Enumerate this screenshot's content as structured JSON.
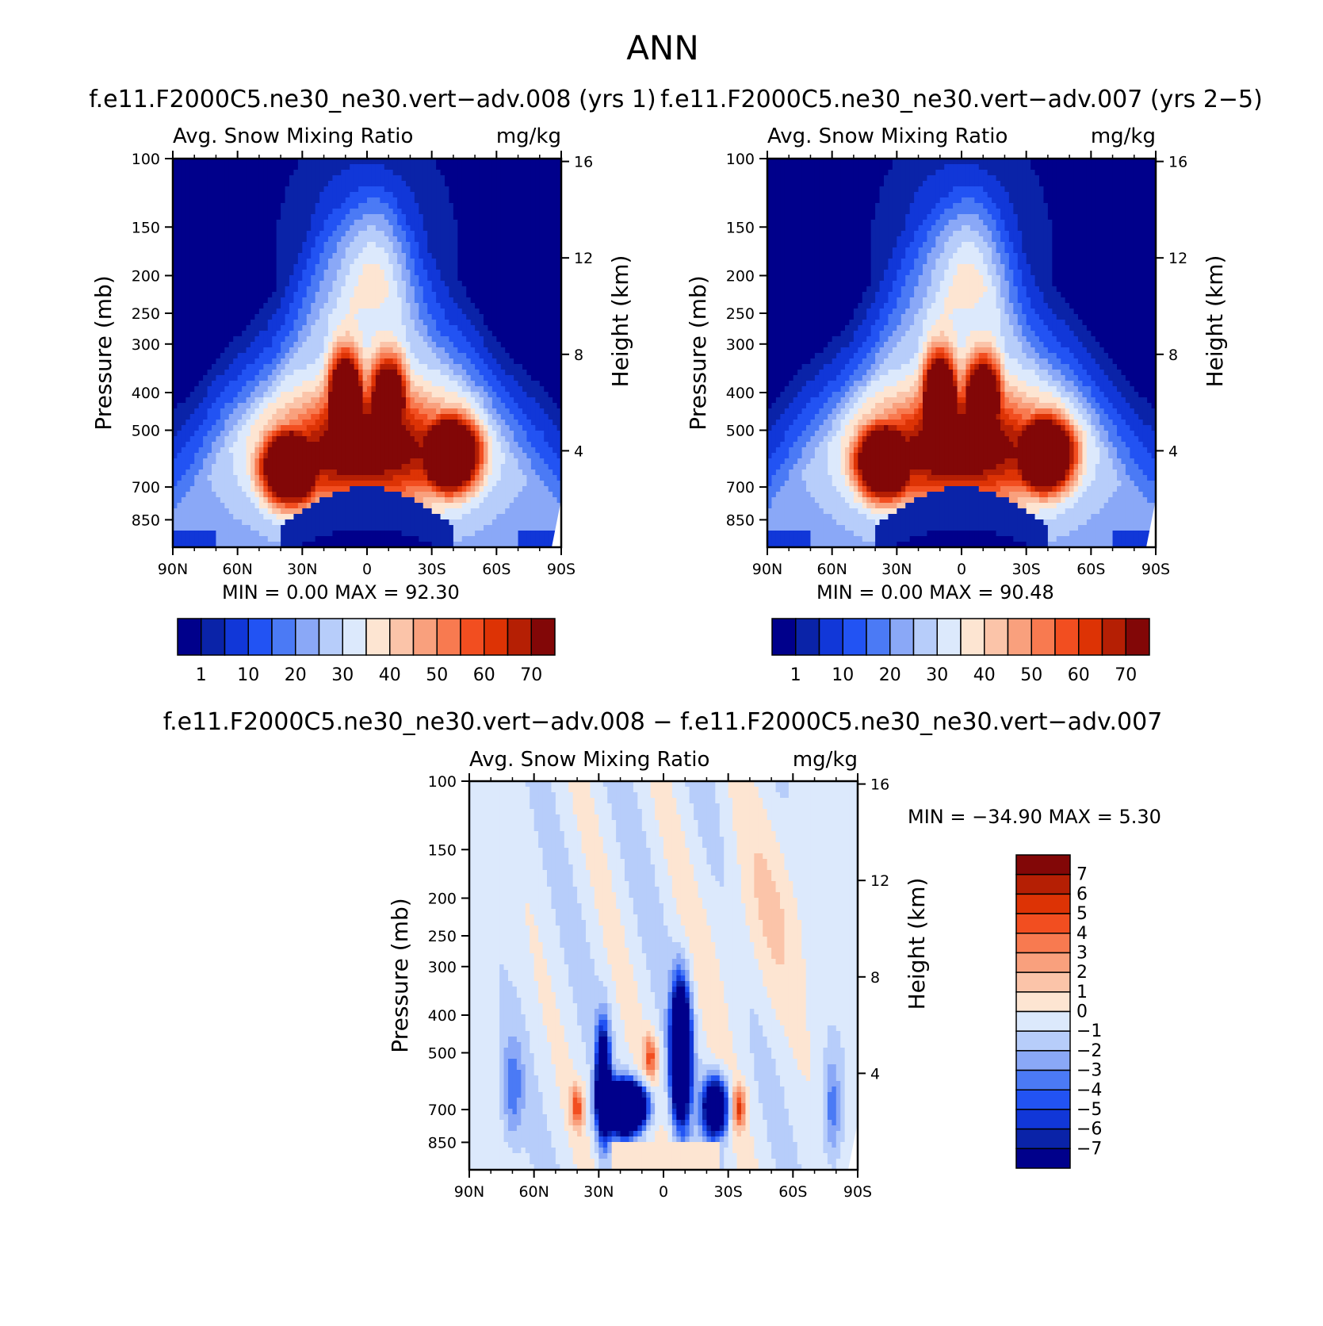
{
  "page_title": "ANN",
  "colors": {
    "abs_scale": [
      "#00008b",
      "#0a23a8",
      "#1137d8",
      "#2253f3",
      "#4b7af5",
      "#8aa8f7",
      "#b7cdfa",
      "#dce9fc",
      "#fde5d2",
      "#fbc4a9",
      "#f9a07d",
      "#f87a50",
      "#f24e20",
      "#dd3305",
      "#b51f04",
      "#820707"
    ],
    "diff_scale": [
      "#00008b",
      "#0a23a8",
      "#1137d8",
      "#2253f3",
      "#4b7af5",
      "#8aa8f7",
      "#b7cdfa",
      "#dce9fc",
      "#fde5d2",
      "#fbc4a9",
      "#f9a07d",
      "#f87a50",
      "#f24e20",
      "#dd3305",
      "#b51f04",
      "#820707"
    ]
  },
  "chart_data": [
    {
      "type": "heatmap",
      "id": "panel-1",
      "title": "f.e11.F2000C5.ne30_ne30.vert−adv.008 (yrs 1)",
      "subtitle_left": "Avg. Snow Mixing Ratio",
      "subtitle_right": "mg/kg",
      "xlabel": "",
      "ylabel": "Pressure (mb)",
      "ylabel_right": "Height (km)",
      "x_ticks": [
        "90N",
        "60N",
        "30N",
        "0",
        "30S",
        "60S",
        "90S"
      ],
      "x_values": [
        90,
        60,
        30,
        0,
        -30,
        -60,
        -90
      ],
      "xlim": [
        90,
        -90
      ],
      "y_ticks": [
        100,
        150,
        200,
        250,
        300,
        400,
        500,
        700,
        850
      ],
      "ylim": [
        100,
        1000
      ],
      "y_scale": "log",
      "y2_ticks": [
        16,
        12,
        8,
        4
      ],
      "contour_levels": [
        1,
        10,
        20,
        30,
        40,
        50,
        60,
        70
      ],
      "colorbar_labels": [
        "1",
        "10",
        "20",
        "30",
        "40",
        "50",
        "60",
        "70"
      ],
      "min_label": "MIN =",
      "min_value": "0.00",
      "max_label": "MAX =",
      "max_value": "92.30",
      "features": [
        {
          "lat": 35,
          "p": 620,
          "value": 80
        },
        {
          "lat": 10,
          "p": 430,
          "value": 88
        },
        {
          "lat": -10,
          "p": 420,
          "value": 75
        },
        {
          "lat": -38,
          "p": 580,
          "value": 90
        }
      ]
    },
    {
      "type": "heatmap",
      "id": "panel-2",
      "title": "f.e11.F2000C5.ne30_ne30.vert−adv.007 (yrs 2−5)",
      "subtitle_left": "Avg. Snow Mixing Ratio",
      "subtitle_right": "mg/kg",
      "xlabel": "",
      "ylabel": "Pressure (mb)",
      "ylabel_right": "Height (km)",
      "x_ticks": [
        "90N",
        "60N",
        "30N",
        "0",
        "30S",
        "60S",
        "90S"
      ],
      "x_values": [
        90,
        60,
        30,
        0,
        -30,
        -60,
        -90
      ],
      "xlim": [
        90,
        -90
      ],
      "y_ticks": [
        100,
        150,
        200,
        250,
        300,
        400,
        500,
        700,
        850
      ],
      "ylim": [
        100,
        1000
      ],
      "y_scale": "log",
      "y2_ticks": [
        16,
        12,
        8,
        4
      ],
      "contour_levels": [
        1,
        10,
        20,
        30,
        40,
        50,
        60,
        70
      ],
      "colorbar_labels": [
        "1",
        "10",
        "20",
        "30",
        "40",
        "50",
        "60",
        "70"
      ],
      "min_label": "MIN =",
      "min_value": "0.00",
      "max_label": "MAX =",
      "max_value": "90.48",
      "features": [
        {
          "lat": 38,
          "p": 600,
          "value": 85
        },
        {
          "lat": 12,
          "p": 440,
          "value": 88
        },
        {
          "lat": -10,
          "p": 430,
          "value": 72
        },
        {
          "lat": -38,
          "p": 570,
          "value": 90
        }
      ]
    },
    {
      "type": "heatmap",
      "id": "panel-diff",
      "title": "f.e11.F2000C5.ne30_ne30.vert−adv.008 − f.e11.F2000C5.ne30_ne30.vert−adv.007",
      "subtitle_left": "Avg. Snow Mixing Ratio",
      "subtitle_right": "mg/kg",
      "xlabel": "",
      "ylabel": "Pressure (mb)",
      "ylabel_right": "Height (km)",
      "x_ticks": [
        "90N",
        "60N",
        "30N",
        "0",
        "30S",
        "60S",
        "90S"
      ],
      "x_values": [
        90,
        60,
        30,
        0,
        -30,
        -60,
        -90
      ],
      "xlim": [
        90,
        -90
      ],
      "y_ticks": [
        100,
        150,
        200,
        250,
        300,
        400,
        500,
        700,
        850
      ],
      "ylim": [
        100,
        1000
      ],
      "y_scale": "log",
      "y2_ticks": [
        16,
        12,
        8,
        4
      ],
      "contour_levels": [
        -7,
        -6,
        -5,
        -4,
        -3,
        -2,
        -1,
        0,
        1,
        2,
        3,
        4,
        5,
        6,
        7
      ],
      "colorbar_labels": [
        "7",
        "6",
        "5",
        "4",
        "3",
        "2",
        "1",
        "0",
        "−1",
        "−2",
        "−3",
        "−4",
        "−5",
        "−6",
        "−7"
      ],
      "min_label": "MIN =",
      "min_value": "−34.90",
      "max_label": "MAX =",
      "max_value": "5.30",
      "features": [
        {
          "lat": 18,
          "p": 720,
          "value": -30
        },
        {
          "lat": -8,
          "p": 500,
          "value": -25
        },
        {
          "lat": -35,
          "p": 690,
          "value": 4
        },
        {
          "lat": 40,
          "p": 680,
          "value": 3
        }
      ]
    }
  ]
}
